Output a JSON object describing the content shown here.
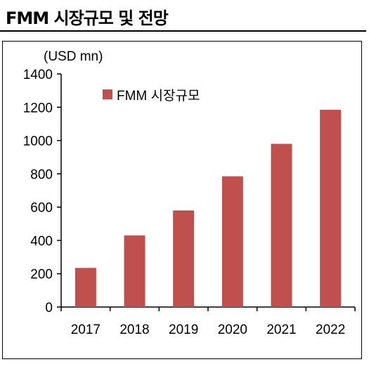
{
  "page": {
    "title": "FMM 시장규모 및 전망"
  },
  "chart_data": {
    "type": "bar",
    "title": "",
    "unit_label": "(USD mn)",
    "categories": [
      "2017",
      "2018",
      "2019",
      "2020",
      "2021",
      "2022"
    ],
    "series": [
      {
        "name": "FMM 시장규모",
        "values": [
          235,
          430,
          580,
          785,
          980,
          1185
        ],
        "color": "#c0504d"
      }
    ],
    "ylim": [
      0,
      1400
    ],
    "yticks": [
      0,
      200,
      400,
      600,
      800,
      1000,
      1200,
      1400
    ],
    "grid": false,
    "legend": "top-left"
  }
}
